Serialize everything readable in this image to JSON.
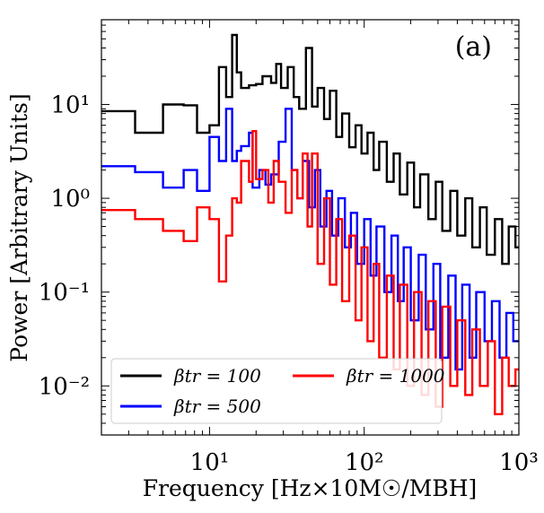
{
  "chart_data": {
    "type": "line",
    "style": "step",
    "xscale": "log",
    "yscale": "log",
    "xlim": [
      2,
      1000
    ],
    "ylim": [
      0.003,
      80
    ],
    "xlabel": "Frequency [Hz×10M☉/MBH]",
    "ylabel": "Power [Arbitrary Units]",
    "panel_label": "(a)",
    "x_major_ticks": [
      10,
      100,
      1000
    ],
    "x_tick_labels": [
      "10¹",
      "10²",
      "10³"
    ],
    "y_major_ticks": [
      0.01,
      0.1,
      1,
      10
    ],
    "y_tick_labels": [
      "10⁻²",
      "10⁻¹",
      "10⁰",
      "10¹"
    ],
    "legend_position": "lower-left",
    "series": [
      {
        "name": "βtr = 100",
        "legend_label": "βtr = 100",
        "color": "#000000",
        "x": [
          2,
          3.3,
          5,
          6.8,
          8.3,
          10,
          11.5,
          12.8,
          14,
          15,
          16,
          18,
          20,
          22,
          25,
          27,
          29,
          32,
          35,
          38,
          42,
          46,
          50,
          55,
          60,
          66,
          72,
          80,
          88,
          96,
          105,
          115,
          125,
          140,
          155,
          170,
          190,
          210,
          230,
          260,
          290,
          320,
          360,
          400,
          450,
          500,
          560,
          620,
          700,
          780,
          860,
          950,
          1000
        ],
        "y": [
          8.5,
          5.0,
          10.0,
          9.8,
          5.0,
          6.0,
          25.0,
          12.0,
          55.0,
          22.0,
          15.0,
          16.0,
          16.5,
          20.0,
          17.0,
          27.0,
          15.0,
          25.0,
          12.0,
          9.0,
          40.0,
          9.5,
          15.0,
          7.0,
          14.0,
          4.5,
          8.0,
          3.5,
          6.0,
          3.0,
          5.0,
          2.0,
          4.0,
          1.5,
          3.0,
          1.1,
          2.4,
          0.8,
          1.8,
          0.6,
          1.5,
          0.45,
          1.2,
          0.4,
          1.0,
          0.3,
          0.8,
          0.25,
          0.6,
          0.2,
          0.5,
          0.3,
          0.3
        ]
      },
      {
        "name": "βtr = 500",
        "legend_label": "βtr = 500",
        "color": "#0000ff",
        "x": [
          2,
          3.3,
          5,
          6.8,
          8.3,
          10,
          11.5,
          12.8,
          14,
          15,
          16,
          18,
          19,
          21,
          23,
          25,
          28,
          31,
          34,
          37,
          40,
          44,
          48,
          52,
          57,
          62,
          68,
          75,
          82,
          90,
          100,
          110,
          120,
          135,
          150,
          165,
          180,
          200,
          225,
          250,
          280,
          310,
          350,
          390,
          430,
          480,
          530,
          600,
          670,
          750,
          830,
          920,
          1000
        ],
        "y": [
          2.2,
          1.9,
          1.3,
          2.0,
          1.2,
          4.5,
          2.5,
          9.0,
          2.5,
          3.2,
          3.6,
          5.0,
          1.3,
          2.0,
          1.4,
          1.8,
          4.0,
          9.0,
          2.0,
          1.0,
          2.5,
          0.8,
          2.0,
          0.5,
          1.2,
          0.4,
          1.0,
          0.3,
          0.7,
          0.2,
          0.6,
          0.15,
          0.5,
          0.1,
          0.4,
          0.08,
          0.3,
          0.05,
          0.25,
          0.04,
          0.2,
          0.02,
          0.15,
          0.015,
          0.12,
          0.02,
          0.1,
          0.03,
          0.08,
          0.02,
          0.06,
          0.03,
          0.03
        ]
      },
      {
        "name": "βtr = 1000",
        "legend_label": "βtr = 1000",
        "color": "#ff0000",
        "x": [
          2,
          3.3,
          5,
          6.8,
          8.3,
          10,
          11.5,
          12.8,
          14,
          15,
          16,
          18,
          19,
          20,
          22,
          24,
          26,
          28,
          31,
          34,
          37,
          40,
          43,
          46,
          50,
          55,
          60,
          66,
          72,
          80,
          88,
          96,
          105,
          115,
          125,
          140,
          155,
          170,
          190,
          210,
          235,
          260,
          290,
          320,
          360,
          400,
          450,
          500,
          560,
          630,
          700,
          780,
          860,
          950,
          1000
        ],
        "y": [
          0.75,
          0.6,
          0.45,
          0.35,
          0.8,
          0.6,
          0.13,
          0.4,
          1.0,
          0.9,
          2.5,
          1.5,
          5.2,
          1.6,
          2.0,
          0.9,
          2.5,
          1.5,
          0.7,
          2.0,
          1.0,
          3.0,
          0.5,
          3.0,
          0.2,
          1.0,
          0.12,
          0.6,
          0.08,
          0.4,
          0.05,
          0.3,
          0.03,
          0.2,
          0.02,
          0.15,
          0.015,
          0.12,
          0.01,
          0.1,
          0.008,
          0.08,
          0.006,
          0.07,
          0.01,
          0.05,
          0.008,
          0.04,
          0.01,
          0.03,
          0.005,
          0.02,
          0.01,
          0.015,
          0.015
        ]
      }
    ]
  }
}
